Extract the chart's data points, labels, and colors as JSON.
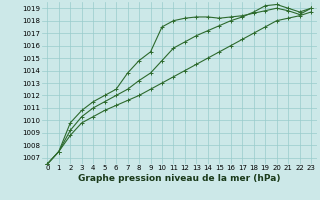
{
  "xlabel": "Graphe pression niveau de la mer (hPa)",
  "x": [
    0,
    1,
    2,
    3,
    4,
    5,
    6,
    7,
    8,
    9,
    10,
    11,
    12,
    13,
    14,
    15,
    16,
    17,
    18,
    19,
    20,
    21,
    22,
    23
  ],
  "line1": [
    1006.5,
    1007.5,
    1008.8,
    1009.8,
    1010.3,
    1010.8,
    1011.2,
    1011.6,
    1012.0,
    1012.5,
    1013.0,
    1013.5,
    1014.0,
    1014.5,
    1015.0,
    1015.5,
    1016.0,
    1016.5,
    1017.0,
    1017.5,
    1018.0,
    1018.2,
    1018.4,
    1018.7
  ],
  "line2": [
    1006.5,
    1007.5,
    1009.8,
    1010.8,
    1011.5,
    1012.0,
    1012.5,
    1013.8,
    1014.8,
    1015.5,
    1017.5,
    1018.0,
    1018.2,
    1018.3,
    1018.3,
    1018.2,
    1018.3,
    1018.4,
    1018.6,
    1018.8,
    1019.0,
    1018.8,
    1018.5,
    1019.0
  ],
  "line3": [
    1006.5,
    1007.5,
    1009.2,
    1010.3,
    1011.0,
    1011.5,
    1012.0,
    1012.5,
    1013.2,
    1013.8,
    1014.8,
    1015.8,
    1016.3,
    1016.8,
    1017.2,
    1017.6,
    1018.0,
    1018.3,
    1018.7,
    1019.2,
    1019.3,
    1019.0,
    1018.7,
    1019.0
  ],
  "line_color": "#2d6a2d",
  "bg_color": "#cce8e8",
  "grid_color": "#99cccc",
  "ylim_min": 1006.5,
  "ylim_max": 1019.5,
  "yticks": [
    1007,
    1008,
    1009,
    1010,
    1011,
    1012,
    1013,
    1014,
    1015,
    1016,
    1017,
    1018,
    1019
  ],
  "xticks": [
    0,
    1,
    2,
    3,
    4,
    5,
    6,
    7,
    8,
    9,
    10,
    11,
    12,
    13,
    14,
    15,
    16,
    17,
    18,
    19,
    20,
    21,
    22,
    23
  ],
  "tick_fontsize": 5.0,
  "xlabel_fontsize": 6.5,
  "marker": "+",
  "marker_size": 3.5,
  "linewidth": 0.8
}
